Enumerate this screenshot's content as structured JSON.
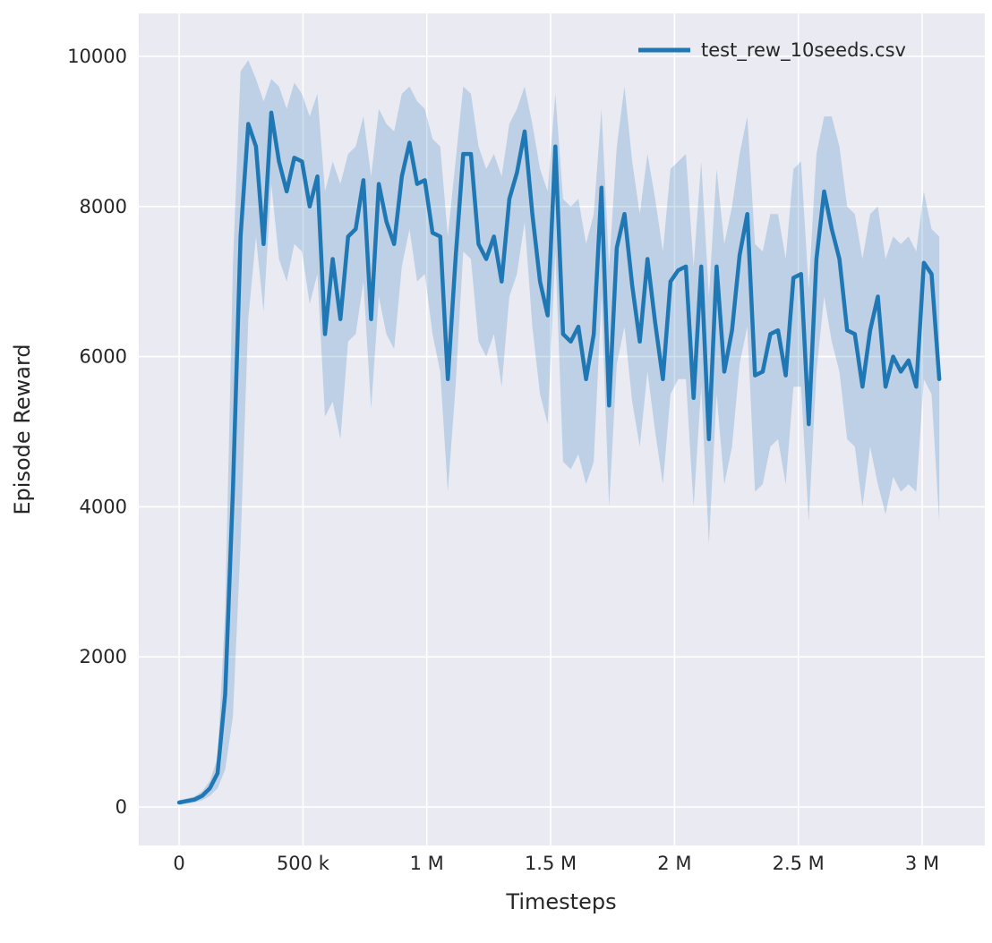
{
  "chart_data": {
    "type": "line",
    "title": "",
    "xlabel": "Timesteps",
    "ylabel": "Episode Reward",
    "grid": true,
    "legend_position": "upper right",
    "legend": [
      {
        "label": "test_rew_10seeds.csv",
        "color": "#1f77b4"
      }
    ],
    "colors": {
      "figure_background": "#ffffff",
      "axes_background": "#eaeaf2",
      "grid": "#ffffff",
      "text": "#262626",
      "line": "#1f77b4",
      "band": "#1f77b4",
      "band_opacity": 0.22
    },
    "xlim": [
      -163000,
      3253000
    ],
    "ylim": [
      -512,
      10572
    ],
    "x_ticks": {
      "values": [
        0,
        500000,
        1000000,
        1500000,
        2000000,
        2500000,
        3000000
      ],
      "labels": [
        "0",
        "500 k",
        "1 M",
        "1.5 M",
        "2 M",
        "2.5 M",
        "3 M"
      ]
    },
    "y_ticks": {
      "values": [
        0,
        2000,
        4000,
        6000,
        8000,
        10000
      ],
      "labels": [
        "0",
        "2000",
        "4000",
        "6000",
        "8000",
        "10000"
      ]
    },
    "series": [
      {
        "name": "test_rew_10seeds.csv",
        "x": [
          0,
          31000,
          62000,
          93000,
          124000,
          155000,
          186000,
          217000,
          248000,
          279000,
          310000,
          341000,
          372000,
          403000,
          434000,
          465000,
          496000,
          527000,
          558000,
          589000,
          620000,
          651000,
          682000,
          713000,
          744000,
          775000,
          806000,
          837000,
          868000,
          899000,
          930000,
          961000,
          992000,
          1023000,
          1054000,
          1085000,
          1116000,
          1147000,
          1178000,
          1209000,
          1240000,
          1271000,
          1302000,
          1333000,
          1364000,
          1395000,
          1426000,
          1457000,
          1488000,
          1519000,
          1550000,
          1581000,
          1612000,
          1643000,
          1674000,
          1705000,
          1736000,
          1767000,
          1798000,
          1829000,
          1860000,
          1891000,
          1922000,
          1953000,
          1984000,
          2015000,
          2046000,
          2077000,
          2108000,
          2139000,
          2170000,
          2201000,
          2232000,
          2263000,
          2294000,
          2325000,
          2356000,
          2387000,
          2418000,
          2449000,
          2480000,
          2511000,
          2542000,
          2573000,
          2604000,
          2635000,
          2666000,
          2697000,
          2728000,
          2759000,
          2790000,
          2821000,
          2852000,
          2883000,
          2914000,
          2945000,
          2976000,
          3007000,
          3038000,
          3069000
        ],
        "mean": [
          60,
          80,
          100,
          150,
          250,
          450,
          1500,
          4200,
          7600,
          9100,
          8800,
          7500,
          9250,
          8600,
          8200,
          8650,
          8600,
          8000,
          8400,
          6300,
          7300,
          6500,
          7600,
          7700,
          8350,
          6500,
          8300,
          7800,
          7500,
          8400,
          8850,
          8300,
          8350,
          7650,
          7600,
          5700,
          7300,
          8700,
          8700,
          7500,
          7300,
          7600,
          7000,
          8100,
          8450,
          9000,
          7900,
          7000,
          6550,
          8800,
          6300,
          6200,
          6400,
          5700,
          6300,
          8250,
          5350,
          7450,
          7900,
          6950,
          6200,
          7300,
          6450,
          5700,
          7000,
          7150,
          7200,
          5450,
          7200,
          4900,
          7200,
          5800,
          6350,
          7350,
          7900,
          5750,
          5800,
          6300,
          6350,
          5750,
          7050,
          7100,
          5100,
          7300,
          8200,
          7700,
          7300,
          6350,
          6300,
          5600,
          6350,
          6800,
          5600,
          6000,
          5800,
          5950,
          5600,
          7250,
          7100,
          5700
        ],
        "lo": [
          30,
          45,
          60,
          90,
          150,
          250,
          500,
          1200,
          3500,
          6500,
          7600,
          6600,
          8300,
          7300,
          7000,
          7500,
          7400,
          6700,
          7100,
          5200,
          5400,
          4900,
          6200,
          6300,
          7000,
          5300,
          6800,
          6300,
          6100,
          7200,
          7700,
          7000,
          7100,
          6300,
          5800,
          4200,
          5600,
          7400,
          7300,
          6200,
          6000,
          6300,
          5600,
          6800,
          7100,
          7800,
          6400,
          5500,
          5100,
          7400,
          4600,
          4500,
          4700,
          4300,
          4600,
          6800,
          4000,
          5900,
          6400,
          5400,
          4800,
          5800,
          5000,
          4300,
          5500,
          5700,
          5700,
          4000,
          5600,
          3500,
          5500,
          4300,
          4800,
          5900,
          6400,
          4200,
          4300,
          4800,
          4900,
          4300,
          5600,
          5600,
          3800,
          5800,
          6800,
          6200,
          5800,
          4900,
          4800,
          4000,
          4800,
          4300,
          3900,
          4400,
          4200,
          4300,
          4200,
          5700,
          5500,
          3800
        ],
        "hi": [
          90,
          115,
          140,
          210,
          350,
          650,
          2600,
          7200,
          9800,
          9950,
          9700,
          9400,
          9700,
          9600,
          9300,
          9650,
          9500,
          9200,
          9500,
          8200,
          8600,
          8300,
          8700,
          8800,
          9200,
          8400,
          9300,
          9100,
          9000,
          9500,
          9600,
          9400,
          9300,
          8900,
          8800,
          7600,
          8600,
          9600,
          9500,
          8800,
          8500,
          8700,
          8400,
          9100,
          9300,
          9600,
          9100,
          8500,
          8200,
          9500,
          8100,
          8000,
          8100,
          7500,
          7900,
          9300,
          7200,
          8800,
          9600,
          8600,
          7900,
          8700,
          8100,
          7400,
          8500,
          8600,
          8700,
          7200,
          8600,
          6800,
          8500,
          7500,
          8000,
          8700,
          9200,
          7500,
          7400,
          7900,
          7900,
          7300,
          8500,
          8600,
          6900,
          8700,
          9200,
          9200,
          8800,
          8000,
          7900,
          7300,
          7900,
          8000,
          7300,
          7600,
          7500,
          7600,
          7400,
          8200,
          7700,
          7600
        ]
      }
    ]
  }
}
